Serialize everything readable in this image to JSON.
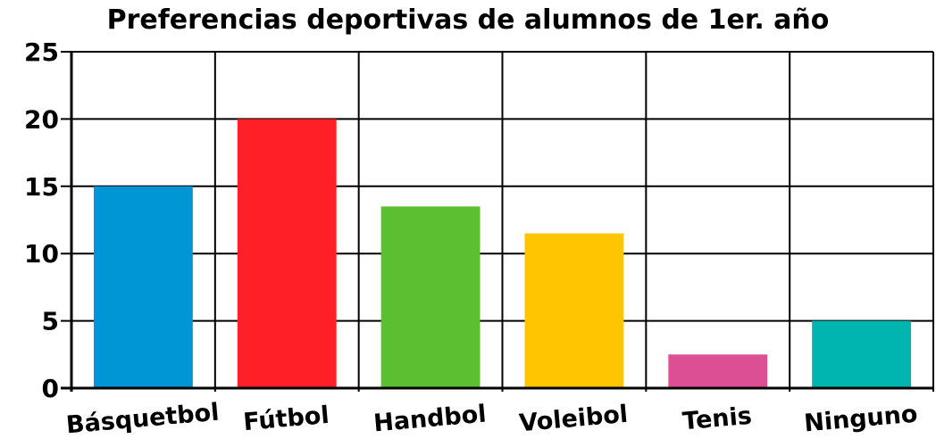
{
  "chart_data": {
    "type": "bar",
    "title": "Preferencias deportivas de alumnos de 1er. año",
    "xlabel": "",
    "ylabel": "",
    "categories": [
      "Básquetbol",
      "Fútbol",
      "Handbol",
      "Voleibol",
      "Tenis",
      "Ninguno"
    ],
    "values": [
      15,
      20,
      13.5,
      11.5,
      2.5,
      5
    ],
    "colors": [
      "#0096d6",
      "#ff1f26",
      "#5cbf32",
      "#ffc600",
      "#dc4f94",
      "#00b5b0"
    ],
    "ylim": [
      0,
      25
    ],
    "yticks": [
      0,
      5,
      10,
      15,
      20,
      25
    ],
    "grid": true,
    "legend": "none"
  }
}
